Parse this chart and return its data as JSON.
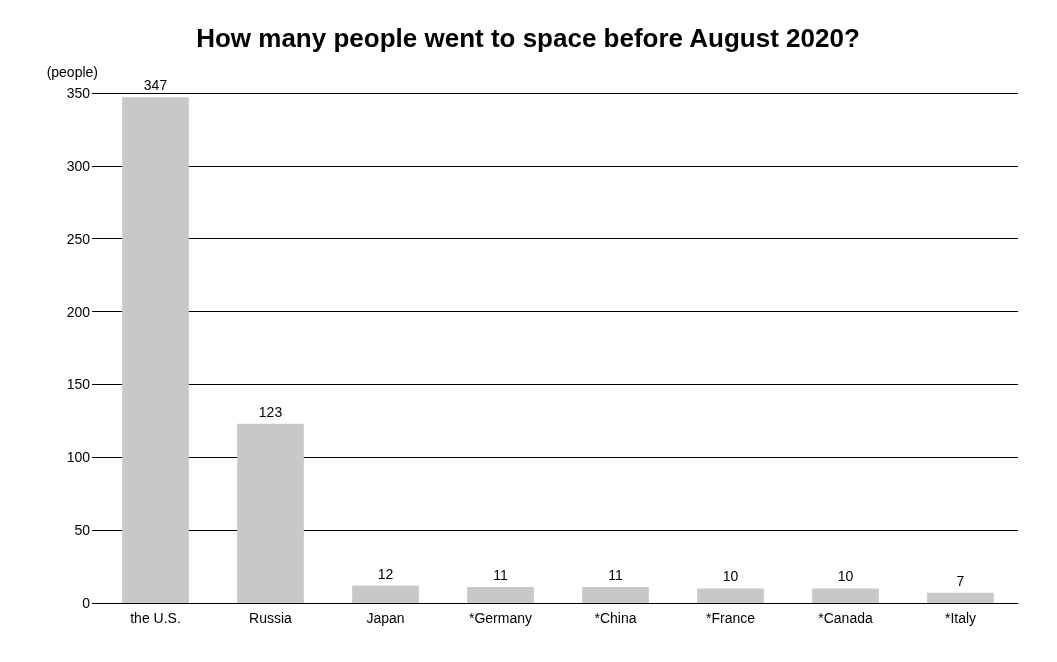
{
  "chart_data": {
    "type": "bar",
    "title": "How many people went to space before August 2020?",
    "ylabel": "(people)",
    "categories": [
      "the U.S.",
      "Russia",
      "Japan",
      "*Germany",
      "*China",
      "*France",
      "*Canada",
      "*Italy"
    ],
    "values": [
      347,
      123,
      12,
      11,
      11,
      10,
      10,
      7
    ],
    "color": "#c8c8c8",
    "ylim": [
      0,
      350
    ],
    "yticks": [
      0,
      50,
      100,
      150,
      200,
      250,
      300,
      350
    ],
    "grid": "y",
    "data_labels": true
  }
}
